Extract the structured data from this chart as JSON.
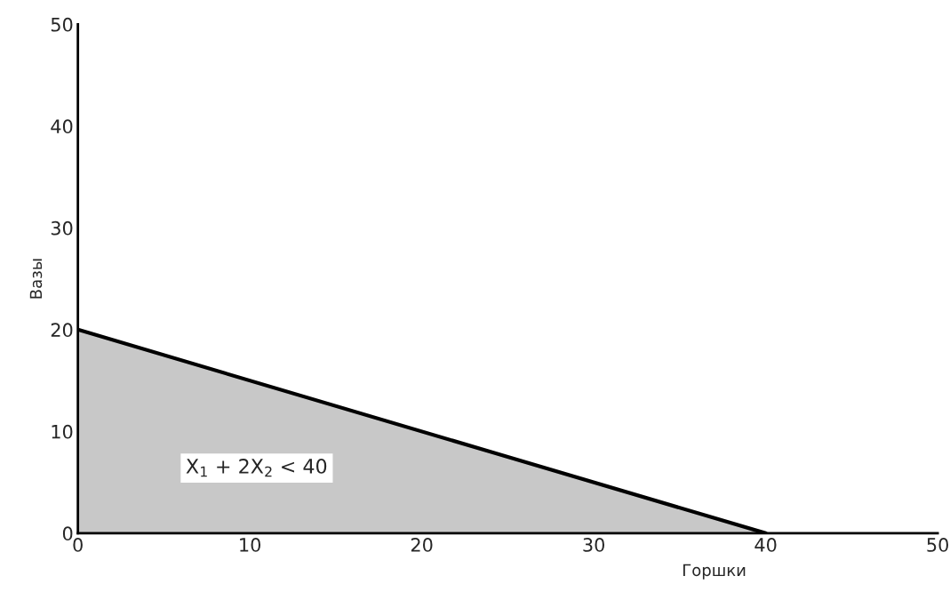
{
  "chart_data": {
    "type": "area",
    "xlabel": "Горшки",
    "ylabel": "Вазы",
    "x": [
      0,
      40
    ],
    "series": [
      {
        "color": "#c8c8c8",
        "values": [
          20,
          0
        ]
      }
    ],
    "xlim": [
      0,
      50
    ],
    "ylim": [
      0,
      50
    ],
    "xticks": [
      0,
      10,
      20,
      30,
      40,
      50
    ],
    "yticks": [
      0,
      10,
      20,
      30,
      40,
      50
    ],
    "annotations": [
      "X$_{1}$ + 2X$_{2}$ < 40"
    ],
    "grid": false,
    "legend": false
  }
}
